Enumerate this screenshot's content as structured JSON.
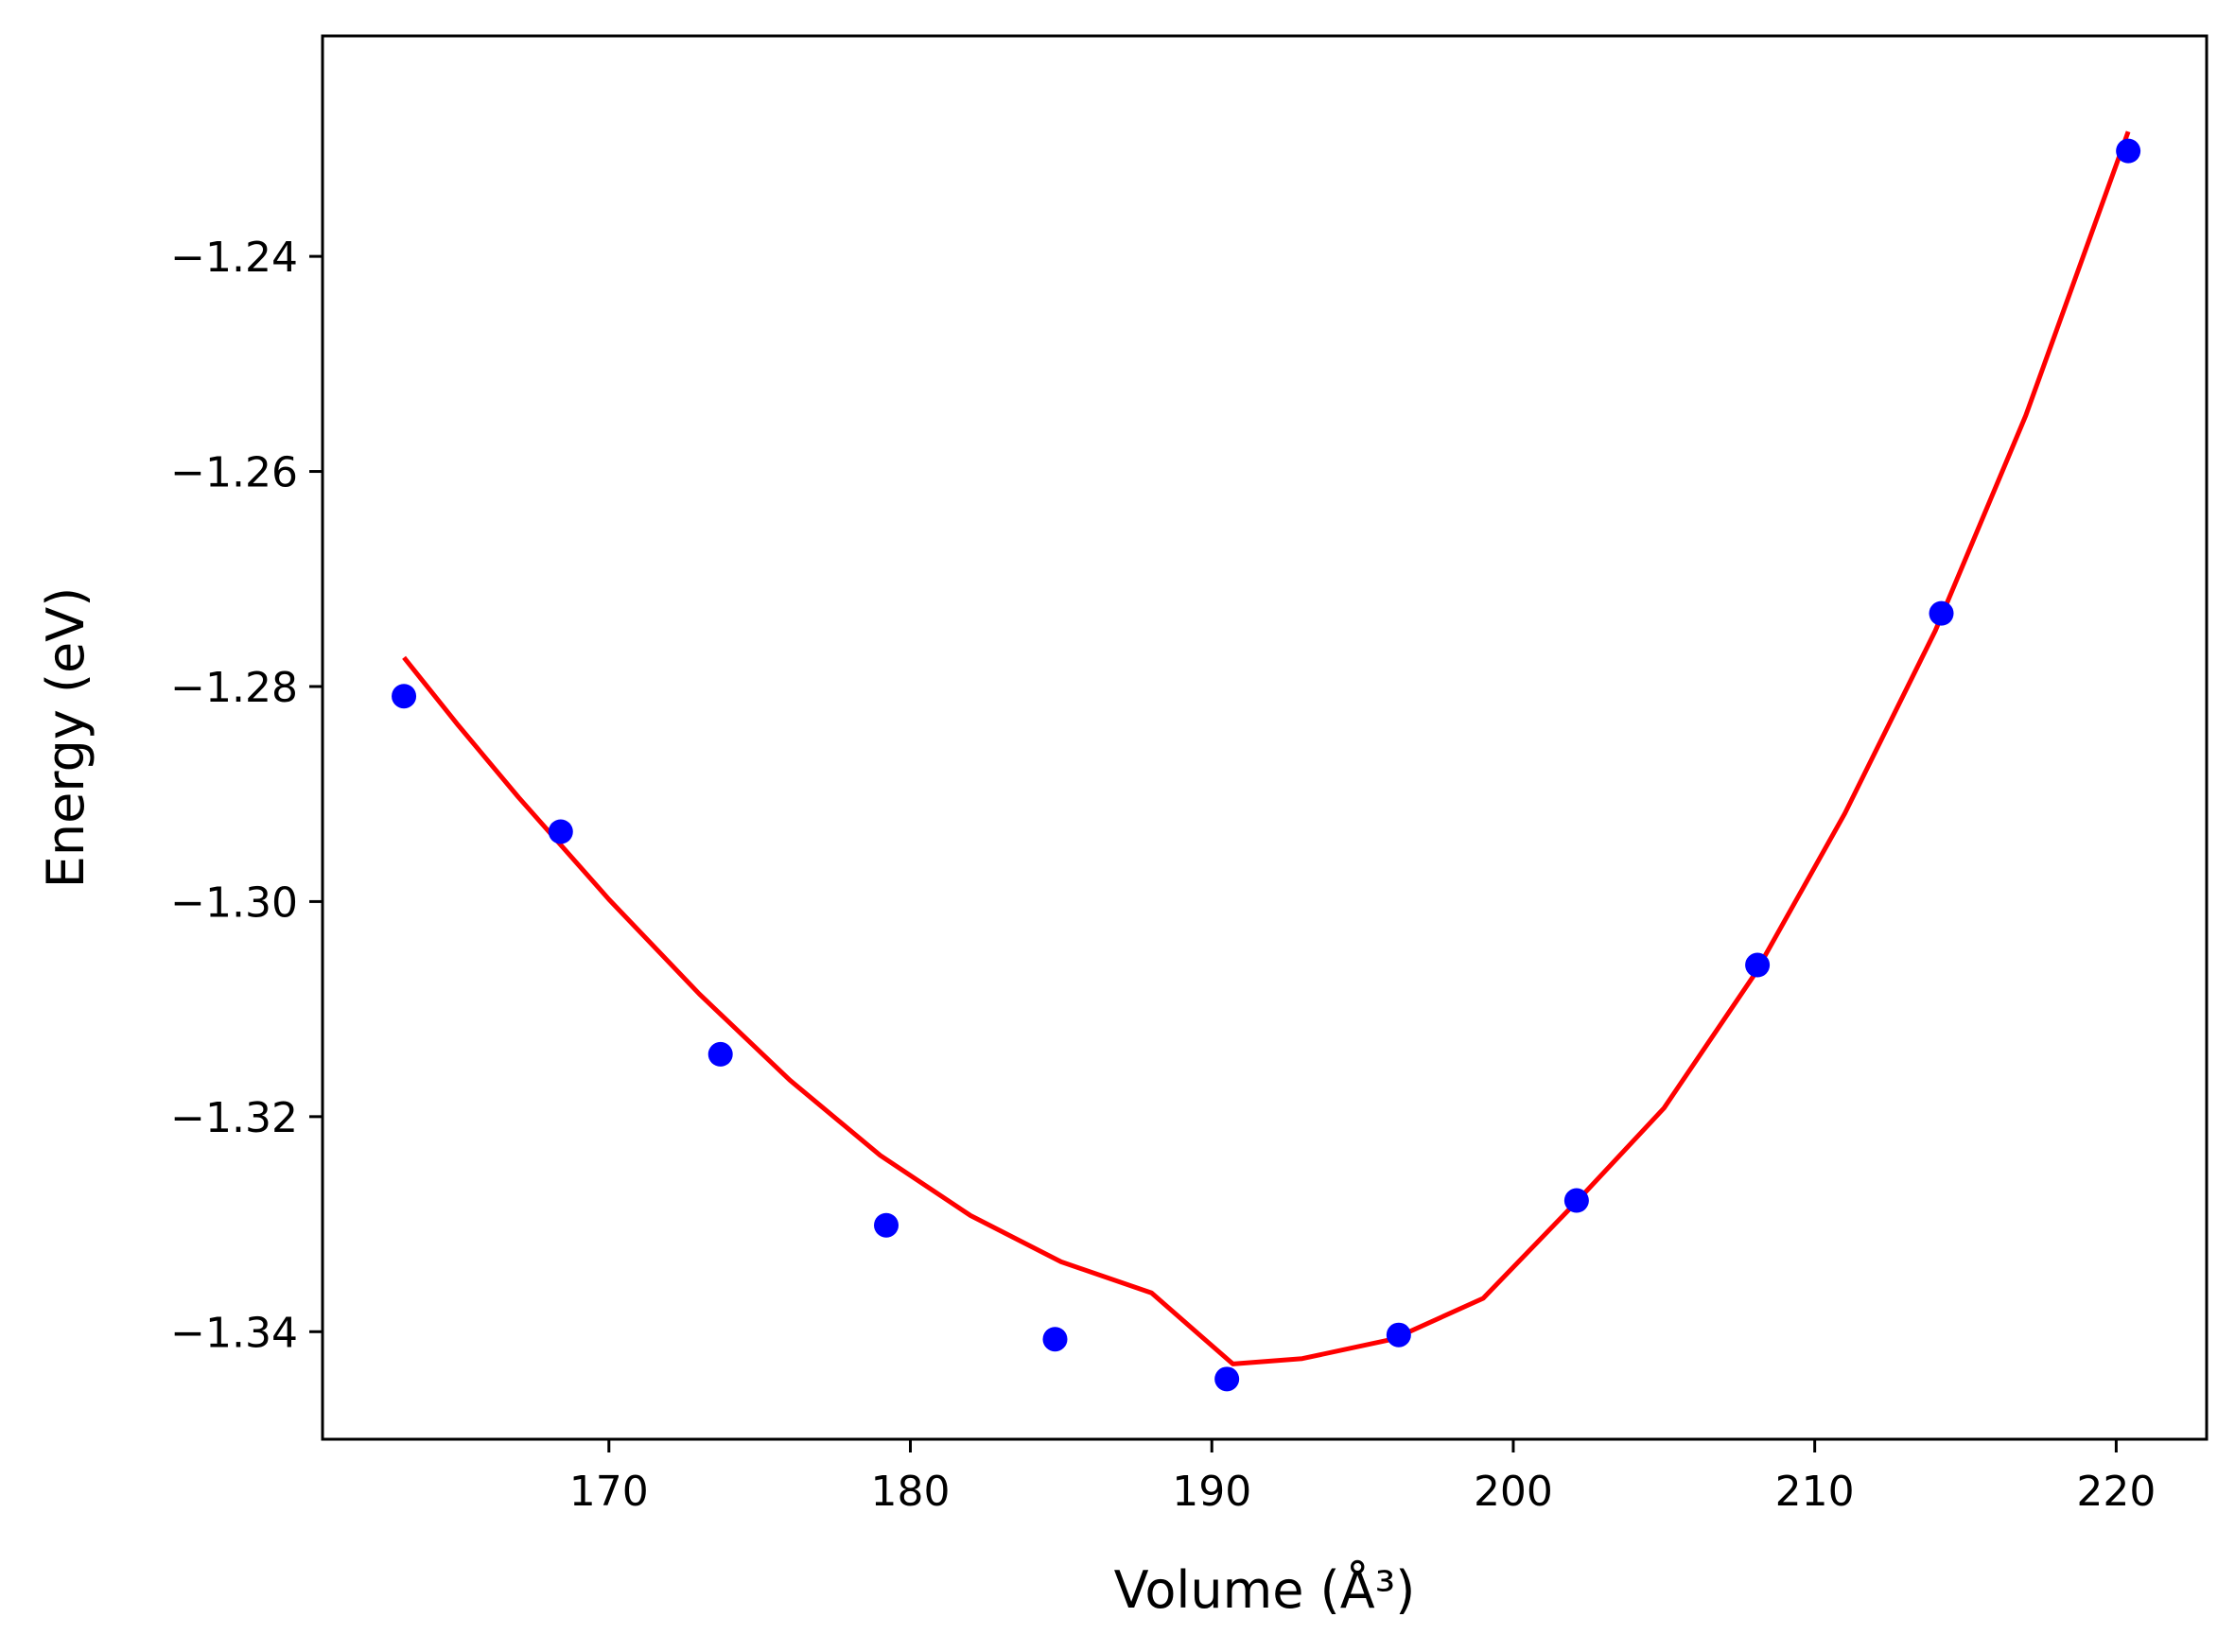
{
  "chart_data": {
    "type": "scatter",
    "title": "",
    "xlabel": "Volume (Å³)",
    "ylabel": "Energy (eV)",
    "xlim": [
      160.5,
      223.0
    ],
    "ylim": [
      -1.35,
      -1.2195
    ],
    "xticks": [
      170,
      180,
      190,
      200,
      210,
      220
    ],
    "xtick_labels": [
      "170",
      "180",
      "190",
      "200",
      "210",
      "220"
    ],
    "yticks": [
      -1.34,
      -1.32,
      -1.3,
      -1.28,
      -1.26,
      -1.24
    ],
    "ytick_labels": [
      "−1.34",
      "−1.32",
      "−1.30",
      "−1.28",
      "−1.26",
      "−1.24"
    ],
    "grid": false,
    "series": [
      {
        "kind": "scatter",
        "color": "#0000ff",
        "x": [
          163.2,
          168.4,
          173.7,
          179.2,
          184.8,
          190.5,
          196.2,
          202.1,
          208.1,
          214.2,
          220.4
        ],
        "y": [
          -1.2809,
          -1.2935,
          -1.3142,
          -1.3301,
          -1.3407,
          -1.3444,
          -1.3403,
          -1.3278,
          -1.3059,
          -1.2732,
          -1.2302
        ]
      },
      {
        "kind": "line",
        "color": "#ff0000",
        "x": [
          163.2,
          165.0,
          167.0,
          170.0,
          173.0,
          176.0,
          179.0,
          182.0,
          185.0,
          188.0,
          190.7,
          193.0,
          196.0,
          199.0,
          202.0,
          205.0,
          208.0,
          211.0,
          214.0,
          217.0,
          220.4
        ],
        "y": [
          -1.2773,
          -1.2836,
          -1.2903,
          -1.2998,
          -1.3086,
          -1.3166,
          -1.3236,
          -1.3292,
          -1.3335,
          -1.3364,
          -1.343,
          -1.3425,
          -1.3407,
          -1.3369,
          -1.3282,
          -1.3192,
          -1.3068,
          -1.2918,
          -1.2748,
          -1.2548,
          -1.2284
        ]
      }
    ]
  }
}
